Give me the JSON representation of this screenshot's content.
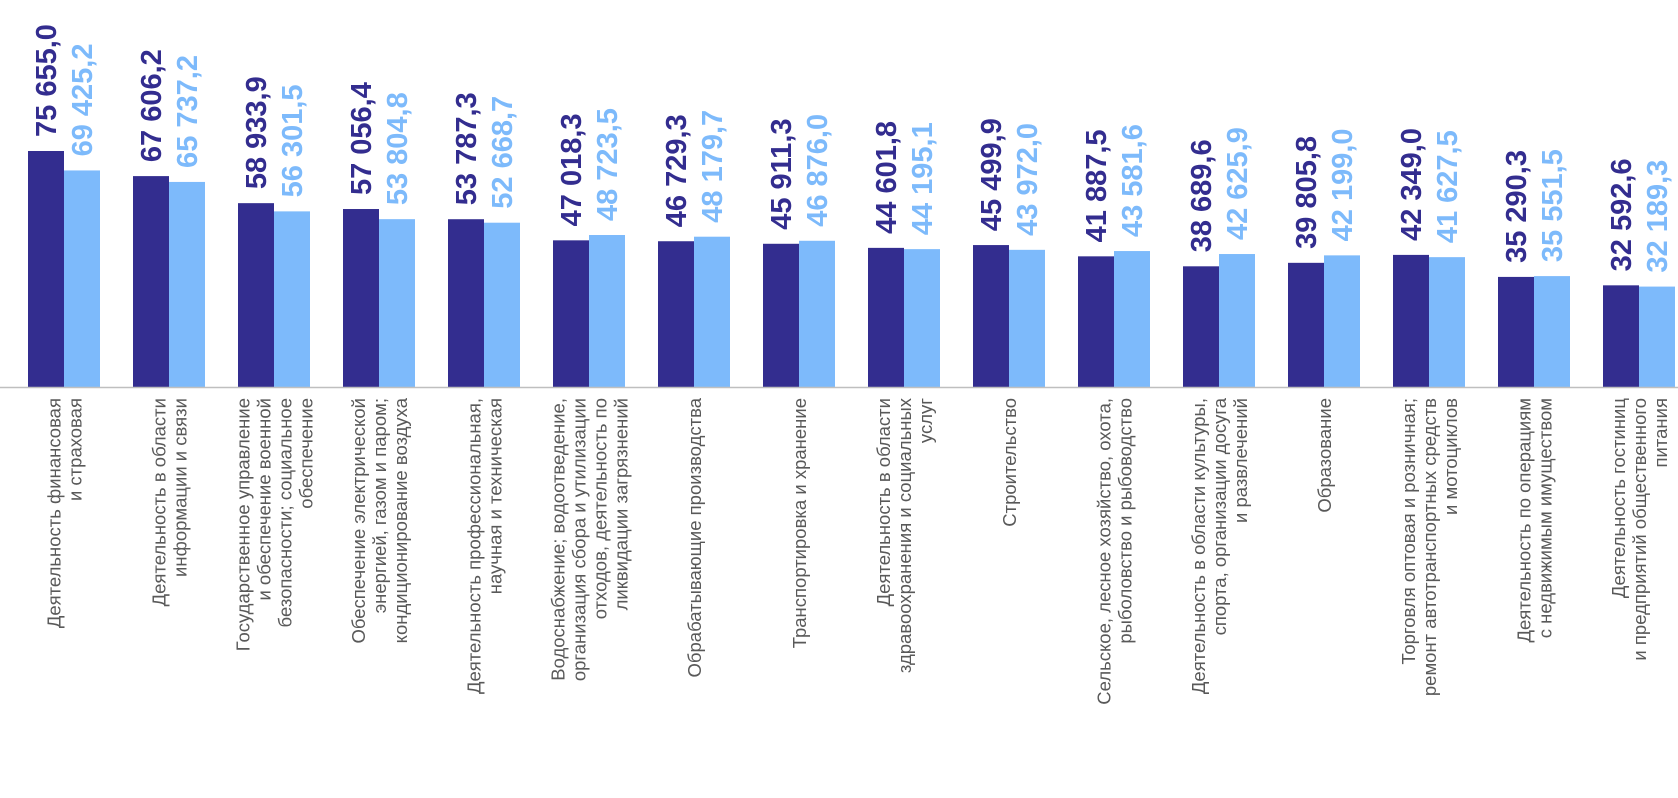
{
  "colors": {
    "series_2021": "#332D8F",
    "series_2020": "#7DBAFB",
    "label_text": "#595959",
    "axis_line": "#BFBFBF"
  },
  "chart_data": {
    "type": "bar",
    "title": "",
    "xlabel": "",
    "ylabel": "",
    "ylim": [
      0,
      78000
    ],
    "grid": false,
    "legend": "none",
    "categories": [
      [
        "Деятельность финансовая",
        "и страховая"
      ],
      [
        "Деятельность в области",
        "информации и связи"
      ],
      [
        "Государственное управление",
        "и обеспечение военной",
        "безопасности; социальное",
        "обеспечение"
      ],
      [
        "Обеспечение электрической",
        "энергией, газом и паром;",
        "кондиционирование воздуха"
      ],
      [
        "Деятельность профессиональная,",
        "научная и техническая"
      ],
      [
        "Водоснабжение; водоотведение,",
        "организация сбора и утилизации",
        "отходов, деятельность по",
        "ликвидации загрязнений"
      ],
      [
        "Обрабатывающие производства"
      ],
      [
        "Транспортировка и хранение"
      ],
      [
        "Деятельность в области",
        "здравоохранения и социальных",
        "услуг"
      ],
      [
        "Строительство"
      ],
      [
        "Сельское, лесное хозяйство, охота,",
        "рыболовство и рыбоводство"
      ],
      [
        "Деятельность в области культуры,",
        "спорта, организации досуга",
        "и развлечений"
      ],
      [
        "Образование"
      ],
      [
        "Торговля оптовая и розничная;",
        "ремонт автотранспортных средств",
        "и мотоциклов"
      ],
      [
        "Деятельность по операциям",
        "с недвижимым имуществом"
      ],
      [
        "Деятельность гостиниц",
        "и предприятий общественного",
        "питания"
      ]
    ],
    "series": [
      {
        "values": [
          75655.0,
          67606.2,
          58933.9,
          57056.4,
          53787.3,
          47018.3,
          46729.3,
          45911.3,
          44601.8,
          45499.9,
          41887.5,
          38689.6,
          39805.8,
          42349.0,
          35290.3,
          32592.6
        ],
        "labels": [
          "75 655,0",
          "67 606,2",
          "58 933,9",
          "57 056,4",
          "53 787,3",
          "47 018,3",
          "46 729,3",
          "45 911,3",
          "44 601,8",
          "45 499,9",
          "41 887,5",
          "38 689,6",
          "39 805,8",
          "42 349,0",
          "35 290,3",
          "32 592,6"
        ]
      },
      {
        "values": [
          69425.2,
          65737.2,
          56301.5,
          53804.8,
          52668.7,
          48723.5,
          48179.7,
          46876.0,
          44195.1,
          43972.0,
          43581.6,
          42625.9,
          42199.0,
          41627.5,
          35551.5,
          32189.3
        ],
        "labels": [
          "69 425,2",
          "65 737,2",
          "56 301,5",
          "53 804,8",
          "52 668,7",
          "48 723,5",
          "48 179,7",
          "46 876,0",
          "44 195,1",
          "43 972,0",
          "43 581,6",
          "42 625,9",
          "42 199,0",
          "41 627,5",
          "35 551,5",
          "32 189,3"
        ]
      }
    ]
  }
}
